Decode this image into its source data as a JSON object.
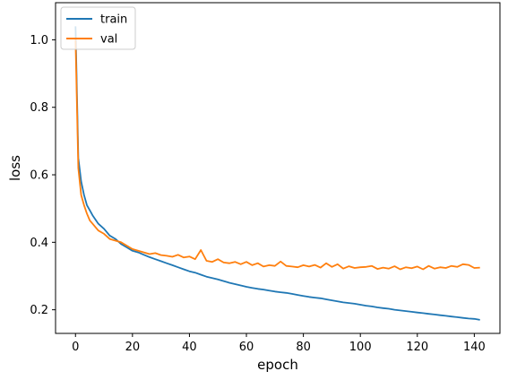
{
  "chart_data": {
    "type": "line",
    "title": "",
    "xlabel": "epoch",
    "ylabel": "loss",
    "xlim": [
      -7,
      149
    ],
    "ylim": [
      0.13,
      1.11
    ],
    "xticks": [
      0,
      20,
      40,
      60,
      80,
      100,
      120,
      140
    ],
    "yticks": [
      0.2,
      0.4,
      0.6,
      0.8,
      1.0
    ],
    "xtick_labels": [
      "0",
      "20",
      "40",
      "60",
      "80",
      "100",
      "120",
      "140"
    ],
    "ytick_labels": [
      "0.2",
      "0.4",
      "0.6",
      "0.8",
      "1.0"
    ],
    "grid": false,
    "legend": {
      "position": "top-left"
    },
    "series": [
      {
        "name": "train",
        "color": "#1f77b4",
        "x": [
          0,
          1,
          2,
          3,
          4,
          5,
          6,
          8,
          10,
          12,
          14,
          16,
          18,
          20,
          22,
          24,
          26,
          28,
          30,
          32,
          34,
          36,
          38,
          40,
          42,
          44,
          46,
          48,
          50,
          52,
          54,
          56,
          58,
          60,
          62,
          64,
          66,
          68,
          70,
          72,
          74,
          76,
          78,
          80,
          82,
          84,
          86,
          88,
          90,
          92,
          94,
          96,
          98,
          100,
          102,
          104,
          106,
          108,
          110,
          112,
          114,
          116,
          118,
          120,
          122,
          124,
          126,
          128,
          130,
          132,
          134,
          136,
          138,
          140,
          142
        ],
        "y": [
          1.04,
          0.65,
          0.58,
          0.54,
          0.51,
          0.495,
          0.48,
          0.455,
          0.44,
          0.42,
          0.41,
          0.395,
          0.385,
          0.375,
          0.37,
          0.363,
          0.356,
          0.35,
          0.344,
          0.338,
          0.332,
          0.326,
          0.32,
          0.314,
          0.31,
          0.304,
          0.298,
          0.294,
          0.29,
          0.285,
          0.28,
          0.276,
          0.272,
          0.268,
          0.265,
          0.262,
          0.26,
          0.257,
          0.254,
          0.252,
          0.25,
          0.247,
          0.244,
          0.241,
          0.238,
          0.236,
          0.234,
          0.231,
          0.228,
          0.225,
          0.222,
          0.22,
          0.218,
          0.215,
          0.212,
          0.21,
          0.207,
          0.205,
          0.203,
          0.2,
          0.198,
          0.196,
          0.194,
          0.192,
          0.19,
          0.188,
          0.186,
          0.184,
          0.182,
          0.18,
          0.178,
          0.176,
          0.174,
          0.173,
          0.17
        ]
      },
      {
        "name": "val",
        "color": "#ff7f0e",
        "x": [
          0,
          1,
          2,
          3,
          4,
          5,
          6,
          8,
          10,
          12,
          14,
          16,
          18,
          20,
          22,
          24,
          26,
          28,
          30,
          32,
          34,
          36,
          38,
          40,
          42,
          44,
          46,
          48,
          50,
          52,
          54,
          56,
          58,
          60,
          62,
          64,
          66,
          68,
          70,
          72,
          74,
          76,
          78,
          80,
          82,
          84,
          86,
          88,
          90,
          92,
          94,
          96,
          98,
          100,
          102,
          104,
          106,
          108,
          110,
          112,
          114,
          116,
          118,
          120,
          122,
          124,
          126,
          128,
          130,
          132,
          134,
          136,
          138,
          140,
          142
        ],
        "y": [
          1.0,
          0.62,
          0.54,
          0.51,
          0.485,
          0.465,
          0.455,
          0.435,
          0.425,
          0.41,
          0.405,
          0.4,
          0.39,
          0.38,
          0.375,
          0.37,
          0.365,
          0.368,
          0.362,
          0.36,
          0.357,
          0.363,
          0.355,
          0.358,
          0.35,
          0.377,
          0.345,
          0.342,
          0.35,
          0.34,
          0.338,
          0.342,
          0.335,
          0.342,
          0.332,
          0.338,
          0.328,
          0.332,
          0.33,
          0.343,
          0.33,
          0.328,
          0.326,
          0.332,
          0.328,
          0.333,
          0.325,
          0.338,
          0.327,
          0.335,
          0.322,
          0.329,
          0.324,
          0.326,
          0.327,
          0.33,
          0.321,
          0.325,
          0.322,
          0.329,
          0.32,
          0.326,
          0.323,
          0.328,
          0.32,
          0.33,
          0.322,
          0.326,
          0.324,
          0.33,
          0.327,
          0.335,
          0.333,
          0.324,
          0.325
        ]
      }
    ]
  }
}
